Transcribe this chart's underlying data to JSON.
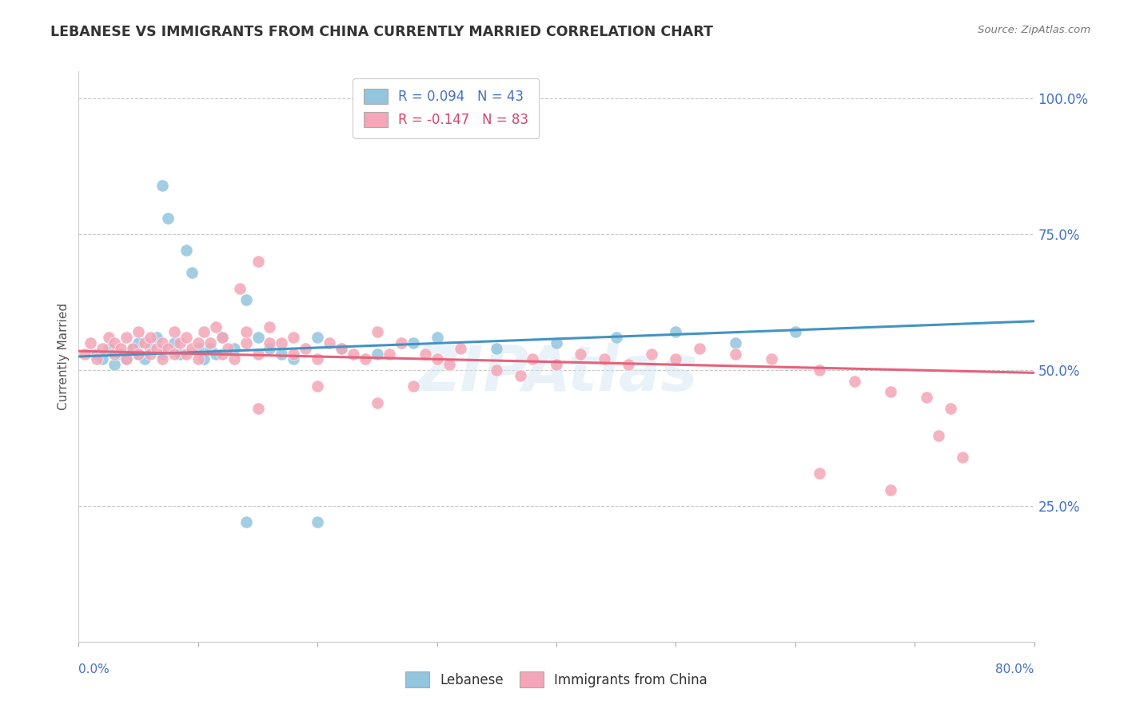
{
  "title": "LEBANESE VS IMMIGRANTS FROM CHINA CURRENTLY MARRIED CORRELATION CHART",
  "source_text": "Source: ZipAtlas.com",
  "ylabel": "Currently Married",
  "legend_entry1": "R = 0.094   N = 43",
  "legend_entry2": "R = -0.147   N = 83",
  "legend_label1": "Lebanese",
  "legend_label2": "Immigrants from China",
  "r1": 0.094,
  "n1": 43,
  "r2": -0.147,
  "n2": 83,
  "color_blue": "#92c5de",
  "color_pink": "#f4a6b8",
  "color_blue_line": "#4393c3",
  "color_pink_line": "#e8607a",
  "background_color": "#ffffff",
  "xmin": 0.0,
  "xmax": 0.8,
  "ymin": 0.0,
  "ymax": 1.05,
  "blue_x": [
    0.015,
    0.02,
    0.025,
    0.03,
    0.035,
    0.04,
    0.045,
    0.05,
    0.05,
    0.055,
    0.06,
    0.065,
    0.07,
    0.075,
    0.08,
    0.085,
    0.09,
    0.095,
    0.1,
    0.105,
    0.11,
    0.115,
    0.12,
    0.13,
    0.14,
    0.15,
    0.16,
    0.17,
    0.18,
    0.2,
    0.22,
    0.25,
    0.28,
    0.3,
    0.35,
    0.4,
    0.45,
    0.5,
    0.55,
    0.6,
    0.14,
    0.2,
    0.07
  ],
  "blue_y": [
    0.53,
    0.52,
    0.54,
    0.51,
    0.53,
    0.52,
    0.54,
    0.53,
    0.55,
    0.52,
    0.54,
    0.56,
    0.53,
    0.78,
    0.55,
    0.53,
    0.72,
    0.68,
    0.54,
    0.52,
    0.54,
    0.53,
    0.56,
    0.54,
    0.63,
    0.56,
    0.54,
    0.53,
    0.52,
    0.56,
    0.54,
    0.53,
    0.55,
    0.56,
    0.54,
    0.55,
    0.56,
    0.57,
    0.55,
    0.57,
    0.22,
    0.22,
    0.84
  ],
  "pink_x": [
    0.005,
    0.01,
    0.015,
    0.02,
    0.025,
    0.03,
    0.03,
    0.035,
    0.04,
    0.04,
    0.045,
    0.05,
    0.05,
    0.055,
    0.06,
    0.06,
    0.065,
    0.07,
    0.07,
    0.075,
    0.08,
    0.08,
    0.085,
    0.09,
    0.09,
    0.095,
    0.1,
    0.1,
    0.105,
    0.11,
    0.115,
    0.12,
    0.12,
    0.125,
    0.13,
    0.135,
    0.14,
    0.14,
    0.15,
    0.15,
    0.16,
    0.16,
    0.17,
    0.18,
    0.18,
    0.19,
    0.2,
    0.21,
    0.22,
    0.23,
    0.24,
    0.25,
    0.26,
    0.27,
    0.28,
    0.29,
    0.3,
    0.31,
    0.32,
    0.35,
    0.37,
    0.38,
    0.4,
    0.42,
    0.44,
    0.46,
    0.48,
    0.5,
    0.52,
    0.55,
    0.58,
    0.62,
    0.65,
    0.68,
    0.71,
    0.73,
    0.62,
    0.68,
    0.72,
    0.74,
    0.15,
    0.2,
    0.25
  ],
  "pink_y": [
    0.53,
    0.55,
    0.52,
    0.54,
    0.56,
    0.53,
    0.55,
    0.54,
    0.52,
    0.56,
    0.54,
    0.53,
    0.57,
    0.55,
    0.53,
    0.56,
    0.54,
    0.52,
    0.55,
    0.54,
    0.53,
    0.57,
    0.55,
    0.53,
    0.56,
    0.54,
    0.52,
    0.55,
    0.57,
    0.55,
    0.58,
    0.53,
    0.56,
    0.54,
    0.52,
    0.65,
    0.55,
    0.57,
    0.53,
    0.7,
    0.55,
    0.58,
    0.55,
    0.53,
    0.56,
    0.54,
    0.52,
    0.55,
    0.54,
    0.53,
    0.52,
    0.57,
    0.53,
    0.55,
    0.47,
    0.53,
    0.52,
    0.51,
    0.54,
    0.5,
    0.49,
    0.52,
    0.51,
    0.53,
    0.52,
    0.51,
    0.53,
    0.52,
    0.54,
    0.53,
    0.52,
    0.5,
    0.48,
    0.46,
    0.45,
    0.43,
    0.31,
    0.28,
    0.38,
    0.34,
    0.43,
    0.47,
    0.44
  ]
}
